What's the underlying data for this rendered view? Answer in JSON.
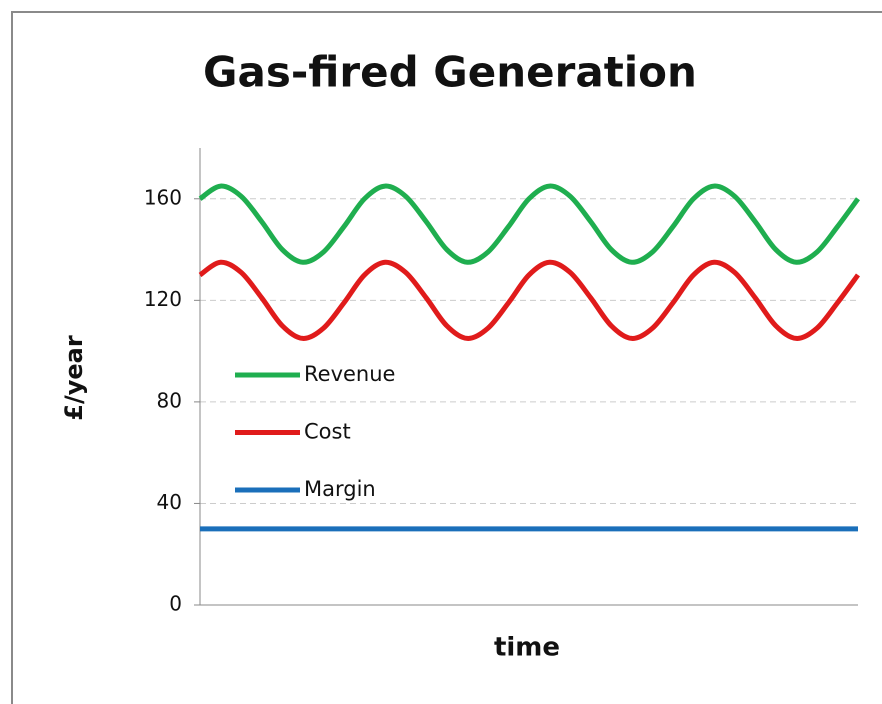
{
  "chart_data": {
    "type": "line",
    "title": "Gas-fired Generation",
    "y_label": "£/year",
    "x_label": "time",
    "ylim": [
      0,
      180
    ],
    "yticks": [
      0,
      40,
      80,
      120,
      160
    ],
    "grid": true,
    "legend": "left",
    "series": [
      {
        "name": "Revenue",
        "color": "#1fae4f",
        "values": [
          160,
          165,
          161,
          151,
          140,
          135,
          139,
          149,
          160,
          165,
          161,
          151,
          140,
          135,
          139,
          149,
          160,
          165,
          161,
          151,
          140,
          135,
          139,
          149,
          160,
          165,
          161,
          151,
          140,
          135,
          139,
          149,
          160
        ]
      },
      {
        "name": "Cost",
        "color": "#e01b1b",
        "values": [
          130,
          135,
          131,
          121,
          110,
          105,
          109,
          119,
          130,
          135,
          131,
          121,
          110,
          105,
          109,
          119,
          130,
          135,
          131,
          121,
          110,
          105,
          109,
          119,
          130,
          135,
          131,
          121,
          110,
          105,
          109,
          119,
          130
        ]
      },
      {
        "name": "Margin",
        "color": "#1a6fba",
        "values": [
          30,
          30,
          30,
          30,
          30,
          30,
          30,
          30,
          30,
          30,
          30,
          30,
          30,
          30,
          30,
          30,
          30,
          30,
          30,
          30,
          30,
          30,
          30,
          30,
          30,
          30,
          30,
          30,
          30,
          30,
          30,
          30,
          30
        ]
      }
    ]
  }
}
